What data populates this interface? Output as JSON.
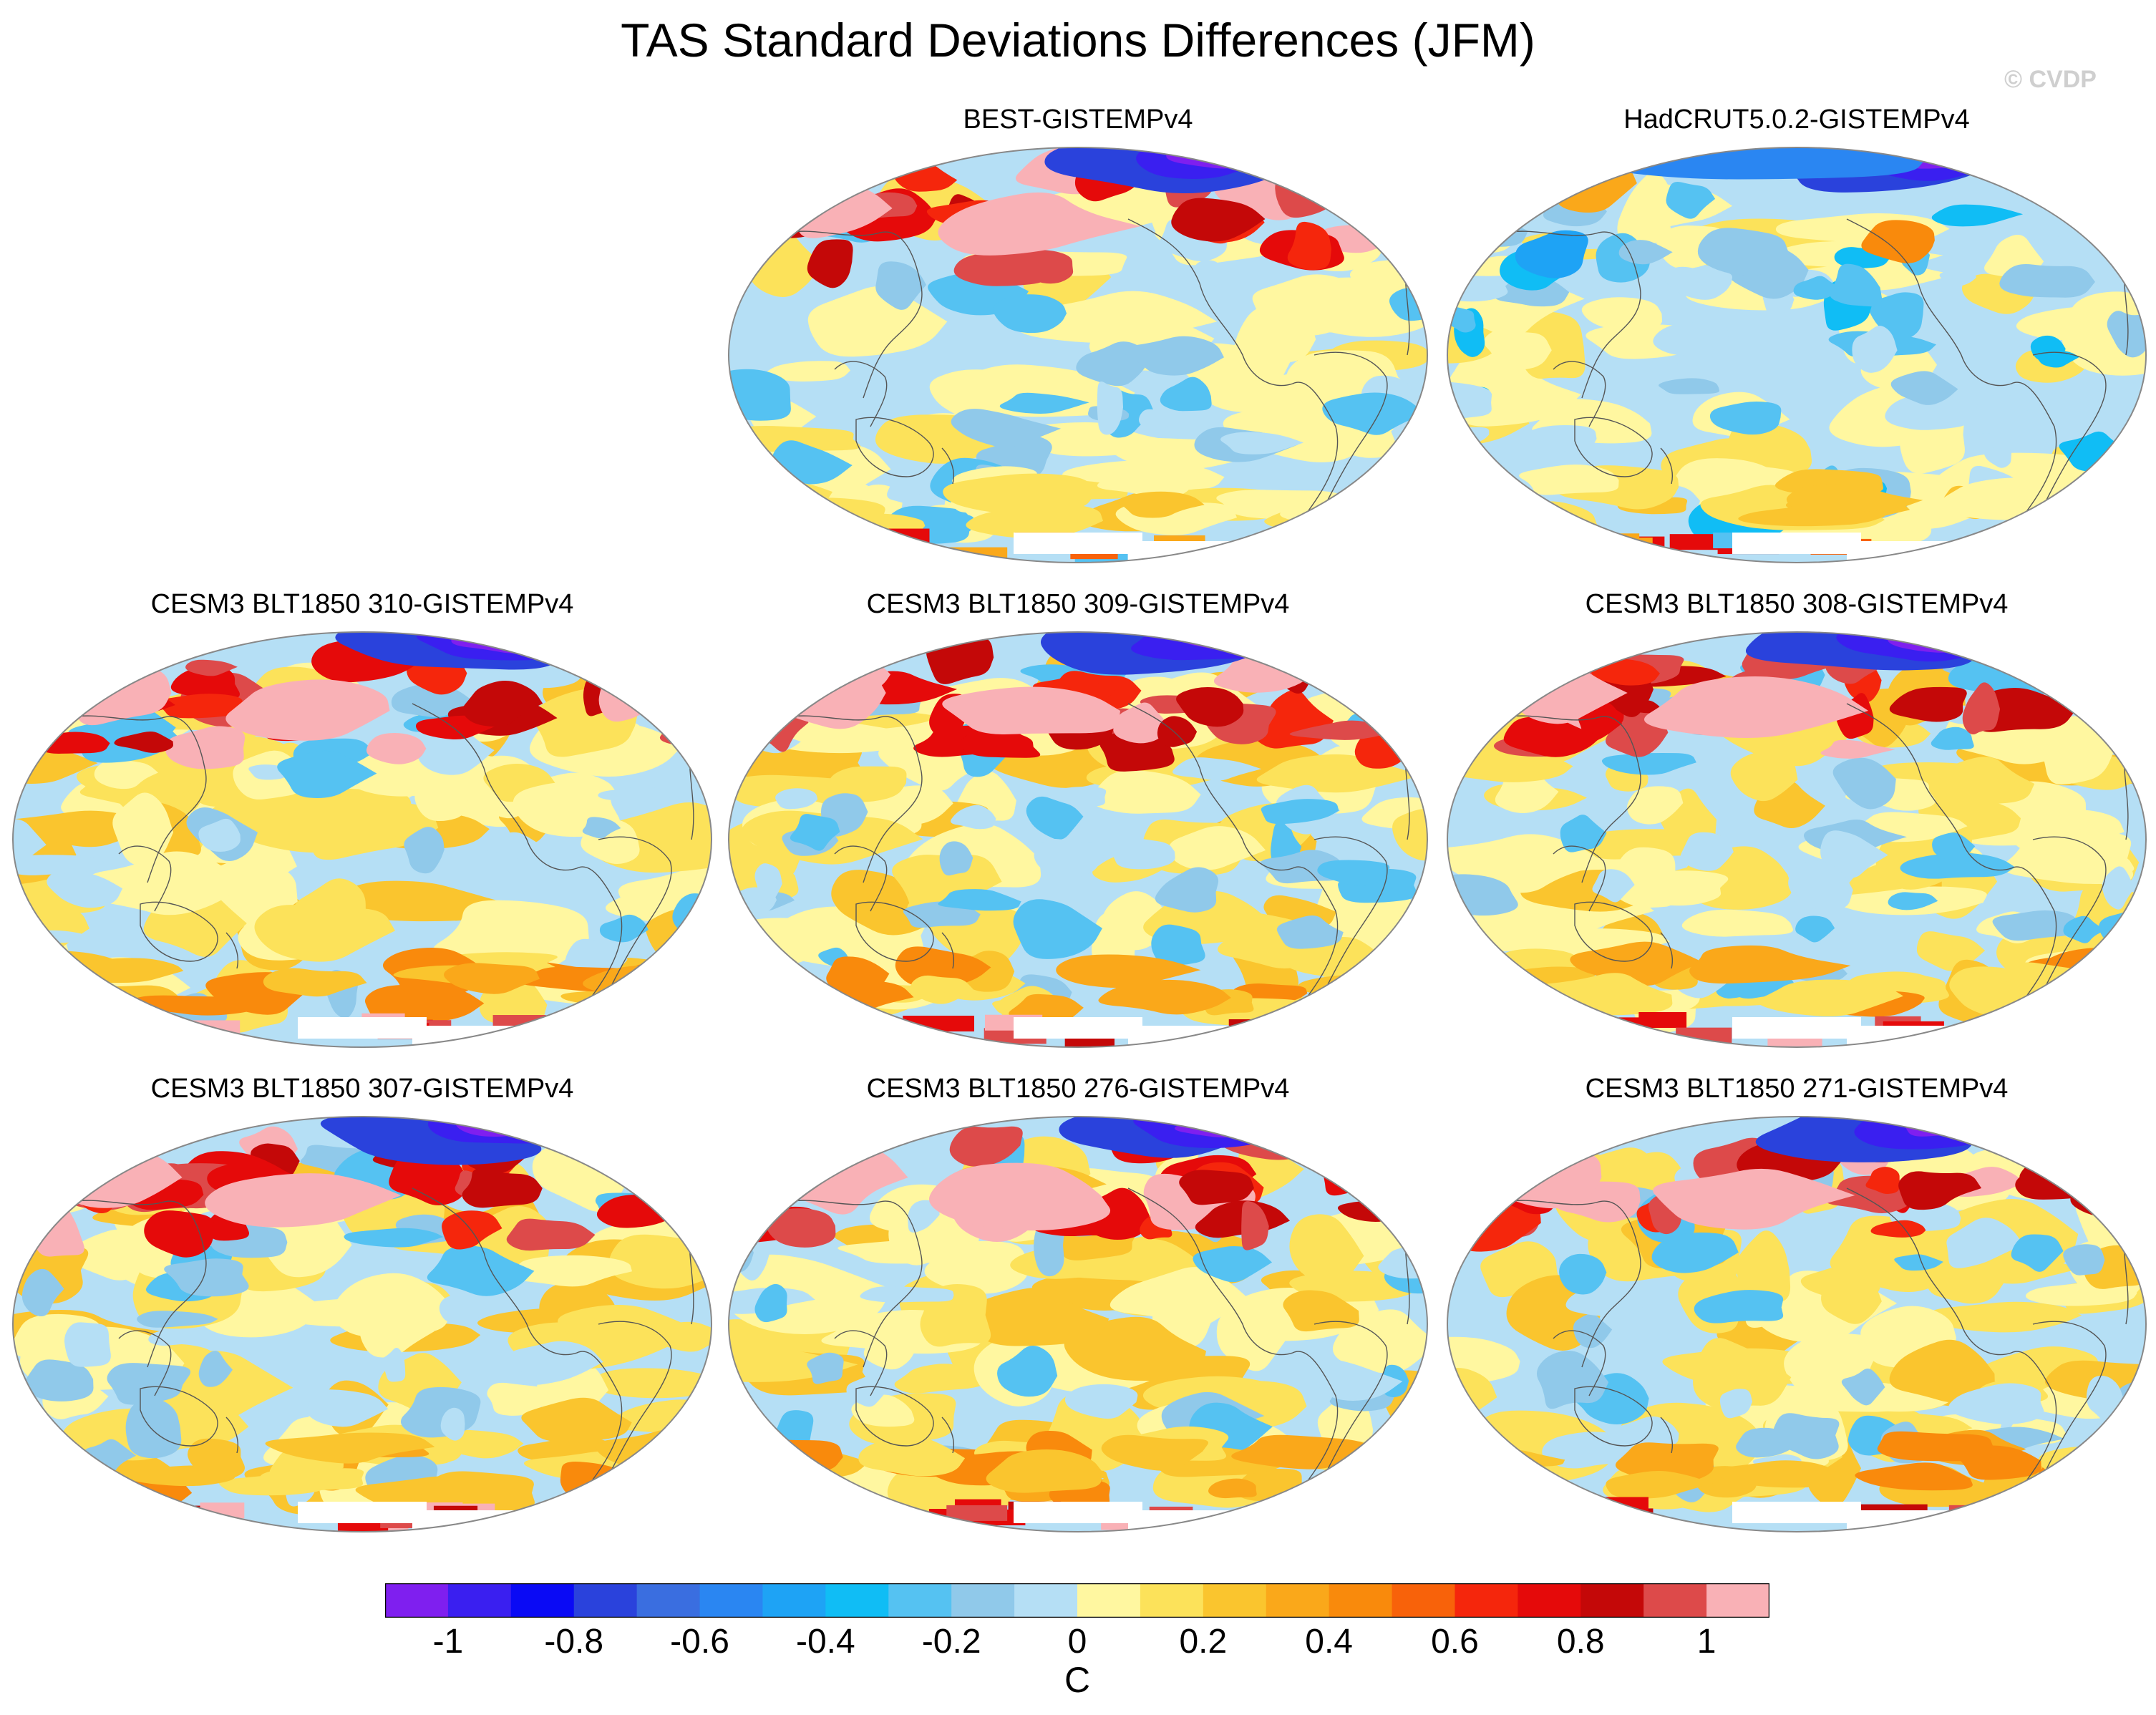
{
  "title": "TAS Standard Deviations Differences (JFM)",
  "watermark": "© CVDP",
  "panels": [
    {
      "title": "BEST-GISTEMPv4",
      "variant": 0,
      "white_antarctic": true
    },
    {
      "title": "HadCRUT5.0.2-GISTEMPv4",
      "variant": 1,
      "white_antarctic": true
    },
    {
      "title": "CESM3 BLT1850 310-GISTEMPv4",
      "variant": 2,
      "white_antarctic": true
    },
    {
      "title": "CESM3 BLT1850 309-GISTEMPv4",
      "variant": 3,
      "white_antarctic": true
    },
    {
      "title": "CESM3 BLT1850 308-GISTEMPv4",
      "variant": 4,
      "white_antarctic": true
    },
    {
      "title": "CESM3 BLT1850 307-GISTEMPv4",
      "variant": 5,
      "white_antarctic": true
    },
    {
      "title": "CESM3 BLT1850 276-GISTEMPv4",
      "variant": 6,
      "white_antarctic": true
    },
    {
      "title": "CESM3 BLT1850 271-GISTEMPv4",
      "variant": 7,
      "white_antarctic": true
    }
  ],
  "colorbar": {
    "colors": [
      "#7f1fef",
      "#3a1ff0",
      "#0a0af5",
      "#2a42dc",
      "#3a6ee0",
      "#2a86f2",
      "#1ea3f5",
      "#10bdf5",
      "#55c2f2",
      "#90c9ea",
      "#b5dff5",
      "#fff7a0",
      "#fce25a",
      "#fac52e",
      "#faa81a",
      "#f98a0c",
      "#f8620a",
      "#f5260c",
      "#e50a0a",
      "#c40808",
      "#dd4a4a",
      "#f9b1b6"
    ],
    "labels": [
      "-1",
      "-0.8",
      "-0.6",
      "-0.4",
      "-0.2",
      "0",
      "0.2",
      "0.4",
      "0.6",
      "0.8",
      "1"
    ],
    "units": "C"
  },
  "map_colors": {
    "background": "#b5dff5",
    "outline": "#888888",
    "coast": "#555555"
  }
}
